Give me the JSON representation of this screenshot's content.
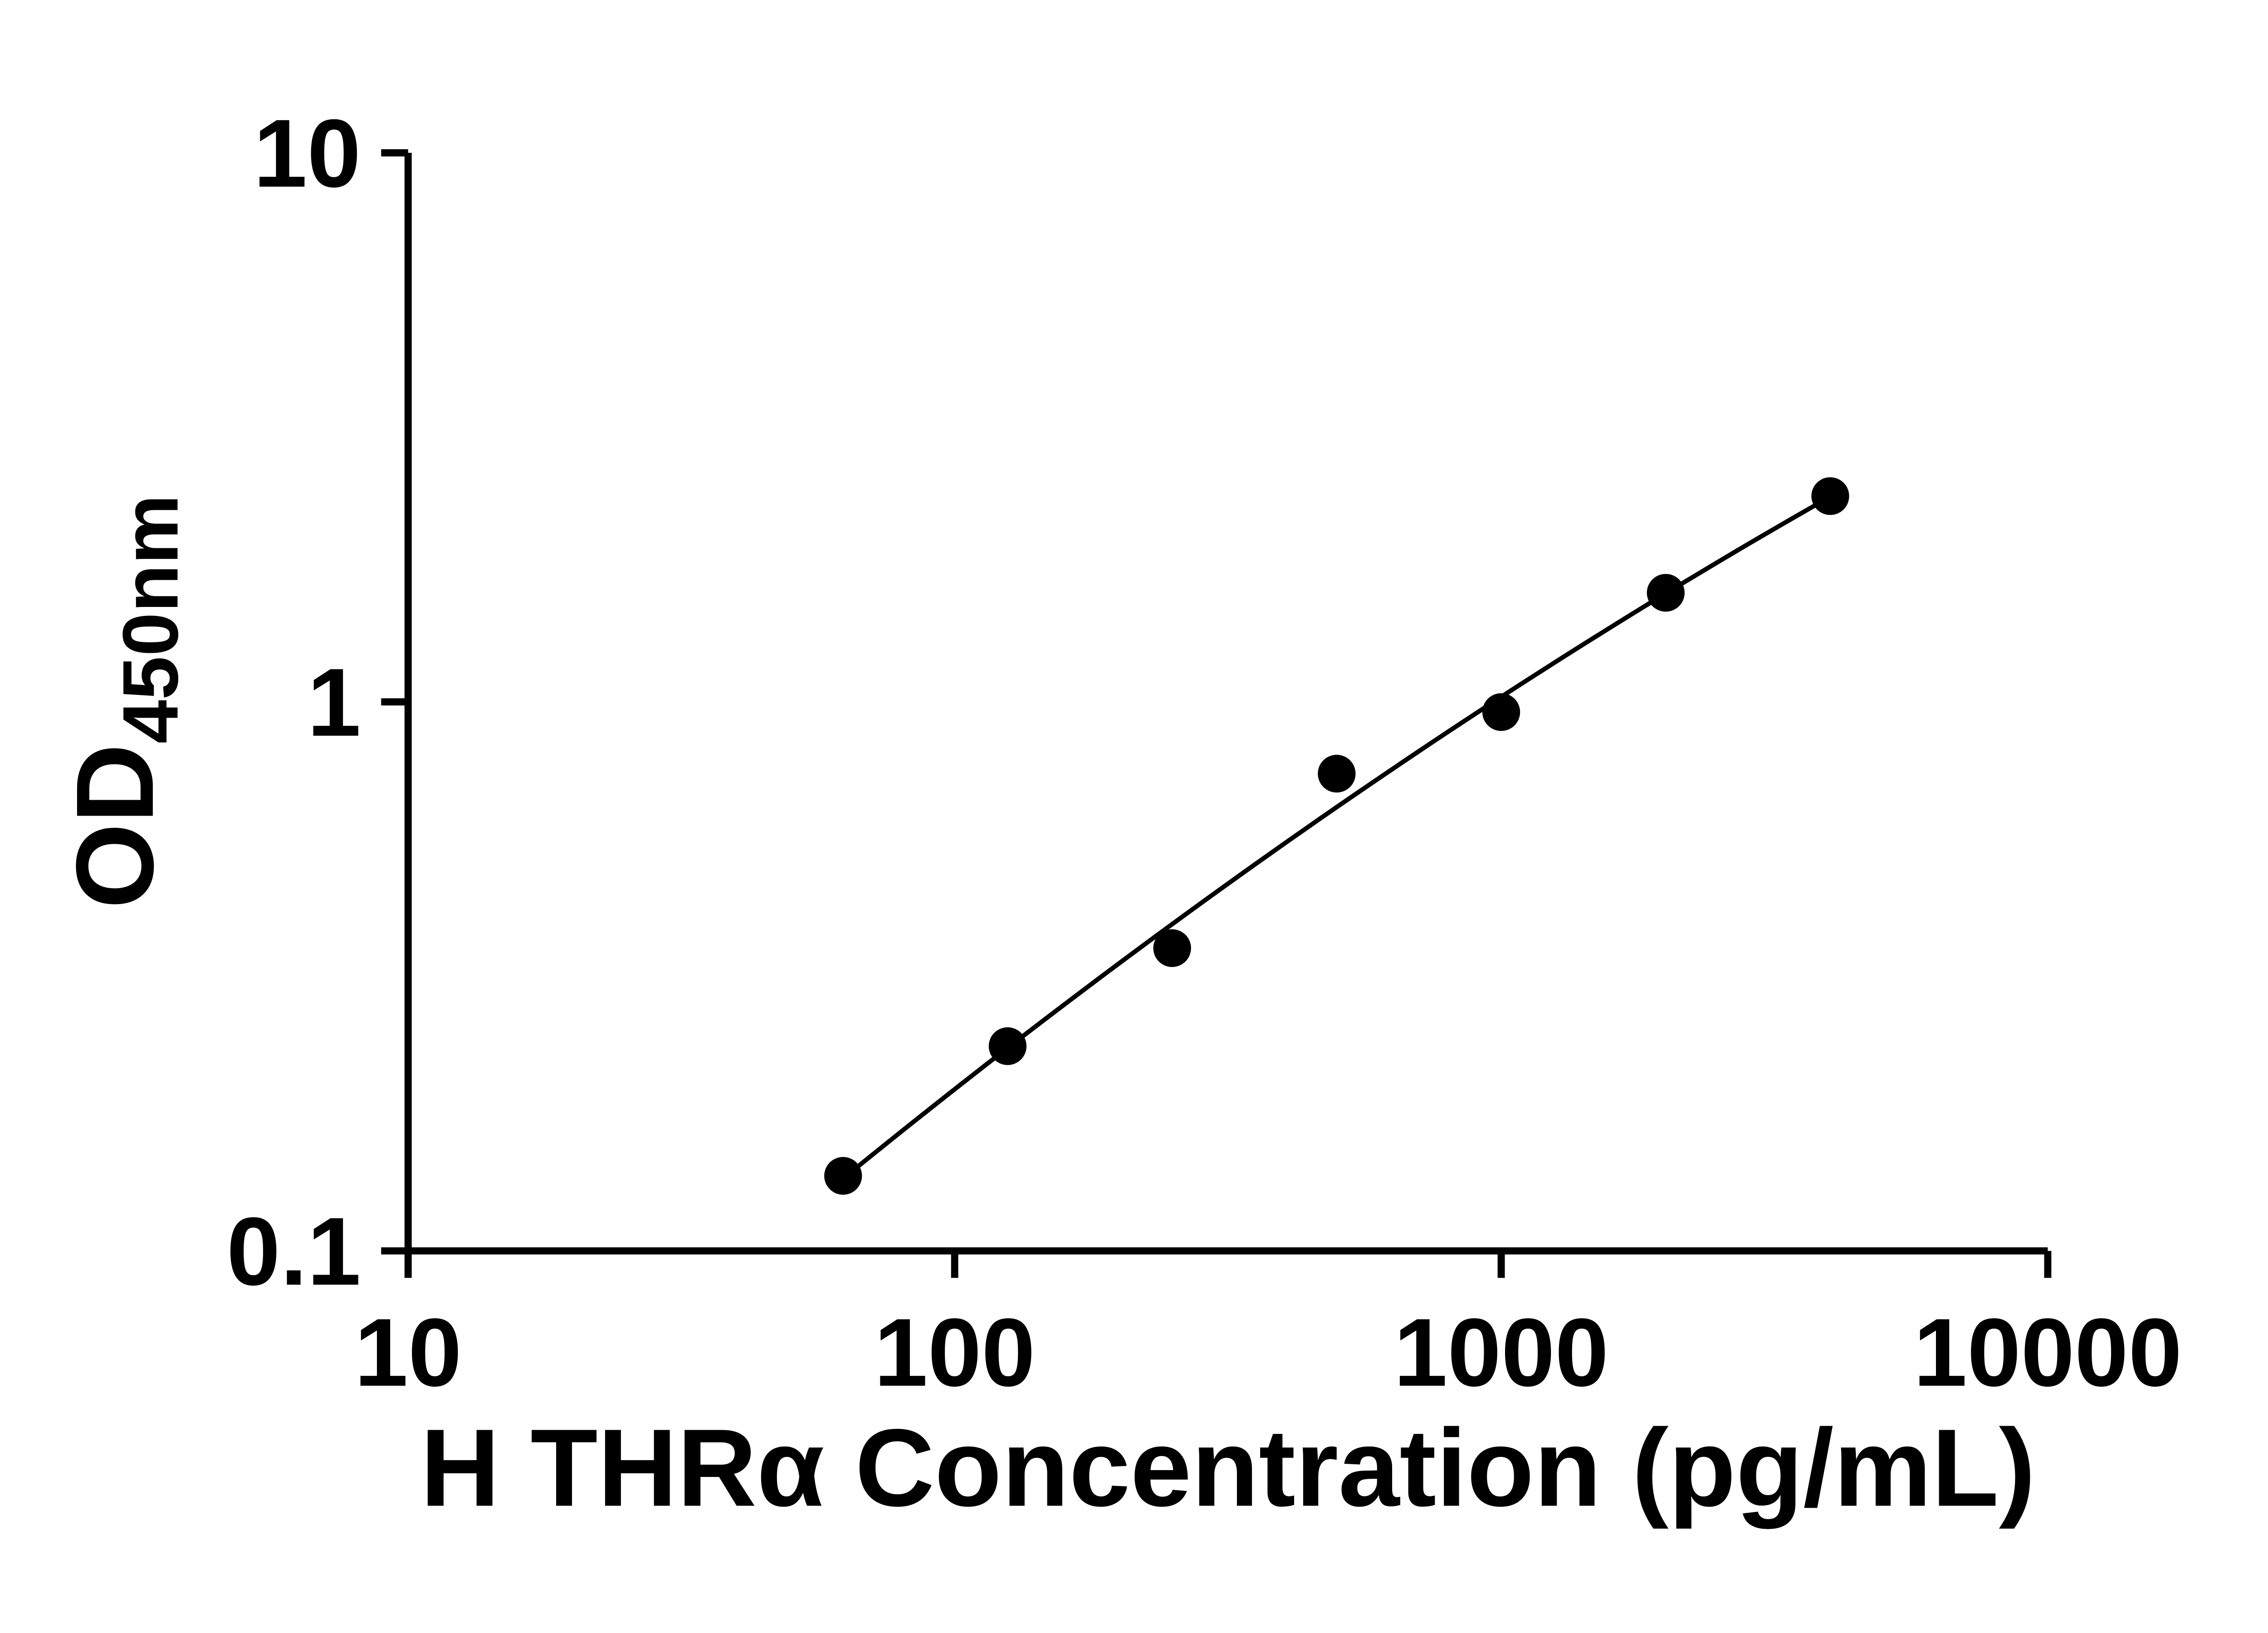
{
  "figure": {
    "background_color": "#ffffff",
    "axis_color": "#000000",
    "text_color": "#000000"
  },
  "chart_data": {
    "type": "scatter",
    "title": "",
    "xlabel": "H THRα Concentration (pg/mL)",
    "ylabel_main": "OD",
    "ylabel_sub": "450nm",
    "x_scale": "log",
    "y_scale": "log",
    "xlim": [
      10,
      10000
    ],
    "ylim": [
      0.1,
      10
    ],
    "grid": false,
    "legend": null,
    "x_ticks": [
      {
        "value": 10,
        "label": "10"
      },
      {
        "value": 100,
        "label": "100"
      },
      {
        "value": 1000,
        "label": "1000"
      },
      {
        "value": 10000,
        "label": "10000"
      }
    ],
    "y_ticks": [
      {
        "value": 0.1,
        "label": "0.1"
      },
      {
        "value": 1,
        "label": "1"
      },
      {
        "value": 10,
        "label": "10"
      }
    ],
    "points": [
      {
        "x": 62.5,
        "y": 0.137
      },
      {
        "x": 125,
        "y": 0.236
      },
      {
        "x": 250,
        "y": 0.356
      },
      {
        "x": 500,
        "y": 0.74
      },
      {
        "x": 1000,
        "y": 0.958
      },
      {
        "x": 2000,
        "y": 1.58
      },
      {
        "x": 4000,
        "y": 2.37
      }
    ],
    "fit_line": true,
    "fit_description": "smooth standard-curve fit through points (log-log)",
    "marker_color": "#000000",
    "line_color": "#000000"
  }
}
